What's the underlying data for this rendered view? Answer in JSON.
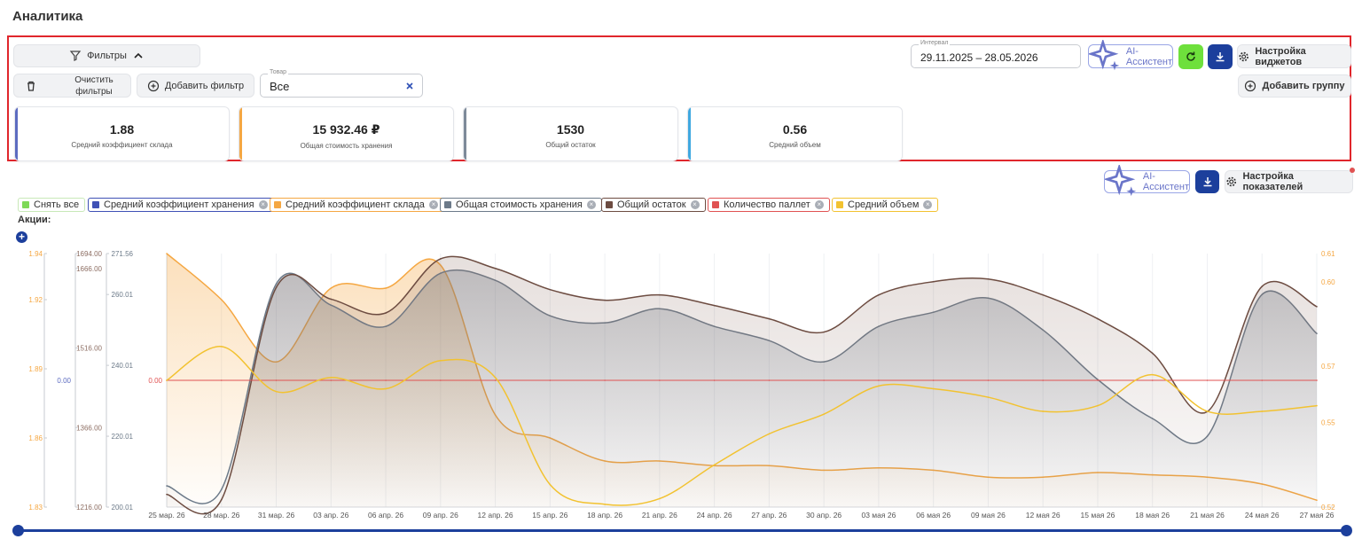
{
  "page": {
    "title": "Аналитика"
  },
  "toolbar": {
    "filters_label": "Фильтры",
    "clear_filters_label": "Очистить\nфильтры",
    "add_filter_label": "Добавить фильтр",
    "product_field": {
      "label": "Товар",
      "value": "Все"
    },
    "interval_field": {
      "label": "Интервал",
      "value": "29.11.2025 – 28.05.2026"
    },
    "ai_assistant_label": "AI-Ассистент",
    "widgets_settings_label": "Настройка виджетов",
    "add_group_label": "Добавить группу"
  },
  "kpis": [
    {
      "value": "1.88",
      "label": "Средний коэффициент склада",
      "color": "#5c6bc0"
    },
    {
      "value": "15 932.46 ₽",
      "label": "Общая стоимость хранения",
      "color": "#f5a742"
    },
    {
      "value": "1530",
      "label": "Общий остаток",
      "color": "#7d8a99"
    },
    {
      "value": "0.56",
      "label": "Средний объем",
      "color": "#3fa8e0"
    }
  ],
  "chart_toolbar": {
    "ai_assistant_label": "AI-Ассистент",
    "indicators_settings_label": "Настройка показателей"
  },
  "legend": [
    {
      "label": "Снять все",
      "color": "#7ed957",
      "removable": false
    },
    {
      "label": "Средний коэффициент хранения",
      "color": "#3f51b5",
      "removable": true
    },
    {
      "label": "Средний коэффициент склада",
      "color": "#f5a742",
      "removable": true
    },
    {
      "label": "Общая стоимость хранения",
      "color": "#6c7a89",
      "removable": true
    },
    {
      "label": "Общий остаток",
      "color": "#6d4c41",
      "removable": true
    },
    {
      "label": "Количество паллет",
      "color": "#e05252",
      "removable": true
    },
    {
      "label": "Средний объем",
      "color": "#f2c230",
      "removable": true
    }
  ],
  "promotions_label": "Акции:",
  "chart_data": {
    "type": "area",
    "x": [
      "25 мар. 26",
      "28 мар. 26",
      "31 мар. 26",
      "03 апр. 26",
      "06 апр. 26",
      "09 апр. 26",
      "12 апр. 26",
      "15 апр. 26",
      "18 апр. 26",
      "21 апр. 26",
      "24 апр. 26",
      "27 апр. 26",
      "30 апр. 26",
      "03 мая 26",
      "06 мая 26",
      "09 мая 26",
      "12 мая 26",
      "15 мая 26",
      "18 мая 26",
      "21 мая 26",
      "24 мая 26",
      "27 мая 26"
    ],
    "axes": {
      "coef_sklad": {
        "ticks": [
          "1.94",
          "1.92",
          "1.89",
          "1.86",
          "1.83"
        ],
        "range": [
          1.83,
          1.94
        ],
        "color": "#f5a742"
      },
      "coef_storage": {
        "ticks": [
          "0.00"
        ],
        "color": "#5c6bc0"
      },
      "remaining": {
        "ticks": [
          "1694.00",
          "1666.00",
          "1516.00",
          "1366.00",
          "1216.00"
        ],
        "range": [
          1216,
          1694
        ],
        "color": "#8d6e63"
      },
      "cost": {
        "ticks": [
          "271.56",
          "260.01",
          "240.01",
          "220.01",
          "200.01"
        ],
        "range": [
          200.01,
          271.56
        ],
        "color": "#6c7a89"
      },
      "pallets": {
        "ticks": [
          "0.00"
        ],
        "color": "#e05252"
      },
      "volume": {
        "ticks": [
          "0.61",
          "0.60",
          "0.57",
          "0.55",
          "0.52"
        ],
        "range": [
          0.52,
          0.61
        ],
        "color": "#f5a742"
      }
    },
    "series": [
      {
        "name": "Средний коэффициент склада",
        "color": "#f5a742",
        "values": [
          1.94,
          1.92,
          1.893,
          1.925,
          1.925,
          1.935,
          1.87,
          1.86,
          1.85,
          1.85,
          1.848,
          1.848,
          1.846,
          1.847,
          1.846,
          1.843,
          1.843,
          1.845,
          1.844,
          1.843,
          1.84,
          1.833
        ]
      },
      {
        "name": "Общая стоимость хранения",
        "color": "#6c7a89",
        "values": [
          206,
          205,
          263,
          257,
          251,
          266,
          264,
          254,
          252,
          256,
          251,
          247,
          241,
          251,
          255,
          259,
          250,
          236,
          225,
          220,
          260,
          249
        ]
      },
      {
        "name": "Общий остаток",
        "color": "#6d4c41",
        "values": [
          1240,
          1230,
          1630,
          1608,
          1582,
          1684,
          1666,
          1626,
          1606,
          1616,
          1596,
          1571,
          1546,
          1616,
          1641,
          1646,
          1616,
          1571,
          1506,
          1396,
          1632,
          1594
        ]
      },
      {
        "name": "Количество паллет",
        "color": "#e05252",
        "values": [
          0,
          0,
          0,
          0,
          0,
          0,
          0,
          0,
          0,
          0,
          0,
          0,
          0,
          0,
          0,
          0,
          0,
          0,
          0,
          0,
          0,
          0
        ]
      },
      {
        "name": "Средний объем",
        "color": "#f2c230",
        "values": [
          0.565,
          0.577,
          0.561,
          0.566,
          0.562,
          0.572,
          0.566,
          0.528,
          0.521,
          0.523,
          0.535,
          0.546,
          0.553,
          0.563,
          0.562,
          0.559,
          0.554,
          0.556,
          0.567,
          0.554,
          0.554,
          0.556
        ]
      }
    ]
  }
}
